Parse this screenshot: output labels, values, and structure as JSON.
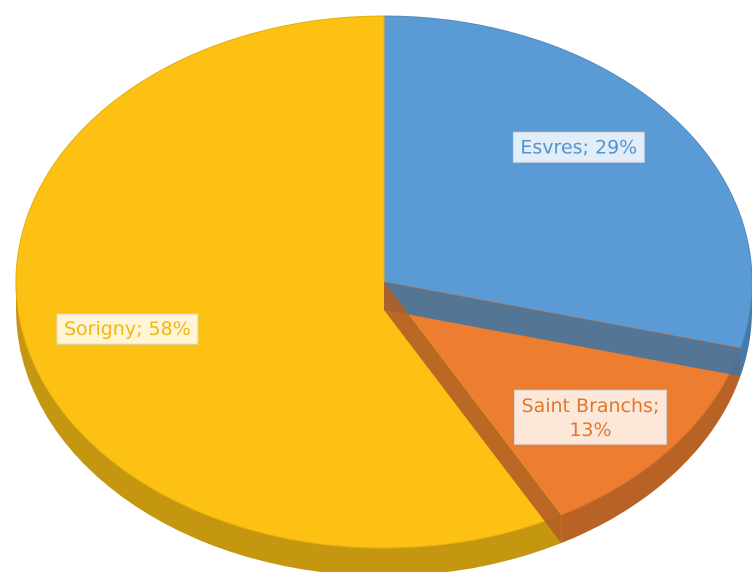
{
  "chart_data": {
    "type": "pie",
    "categories": [
      "Esvres",
      "Saint Branchs",
      "Sorigny"
    ],
    "values": [
      29,
      13,
      58
    ],
    "value_labels": [
      "Esvres; 29%",
      "Saint Branchs; 13%",
      "Sorigny; 58%"
    ],
    "colors": [
      "#5b9bd5",
      "#ed7d31",
      "#fdc114"
    ],
    "three_d": true
  }
}
